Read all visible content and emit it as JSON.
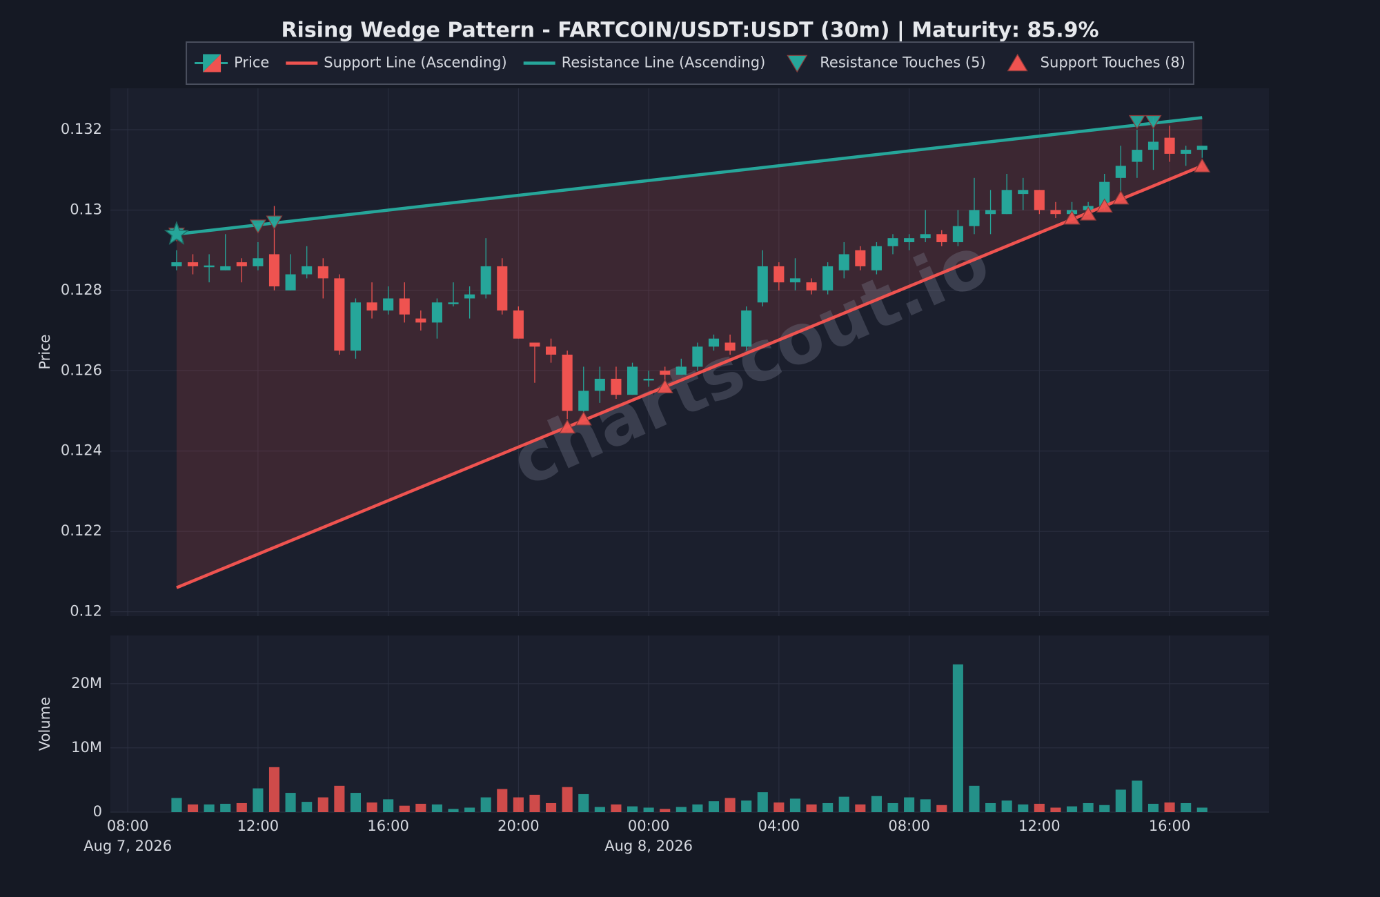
{
  "chart_data": [
    {
      "type": "candlestick",
      "title": "Rising Wedge Pattern - FARTCOIN/USDT:USDT (30m) | Maturity: 85.9%",
      "ylabel": "Price",
      "name": "Price",
      "up_color": "#26a69a",
      "down_color": "#ef5350",
      "watermark": "chartscout.io",
      "grid": true,
      "legend": "upper center",
      "x": [
        "2026-08-07T09:30",
        "2026-08-07T10:00",
        "2026-08-07T10:30",
        "2026-08-07T11:00",
        "2026-08-07T11:30",
        "2026-08-07T12:00",
        "2026-08-07T12:30",
        "2026-08-07T13:00",
        "2026-08-07T13:30",
        "2026-08-07T14:00",
        "2026-08-07T14:30",
        "2026-08-07T15:00",
        "2026-08-07T15:30",
        "2026-08-07T16:00",
        "2026-08-07T16:30",
        "2026-08-07T17:00",
        "2026-08-07T17:30",
        "2026-08-07T18:00",
        "2026-08-07T18:30",
        "2026-08-07T19:00",
        "2026-08-07T19:30",
        "2026-08-07T20:00",
        "2026-08-07T20:30",
        "2026-08-07T21:00",
        "2026-08-07T21:30",
        "2026-08-07T22:00",
        "2026-08-07T22:30",
        "2026-08-07T23:00",
        "2026-08-07T23:30",
        "2026-08-08T00:00",
        "2026-08-08T00:30",
        "2026-08-08T01:00",
        "2026-08-08T01:30",
        "2026-08-08T02:00",
        "2026-08-08T02:30",
        "2026-08-08T03:00",
        "2026-08-08T03:30",
        "2026-08-08T04:00",
        "2026-08-08T04:30",
        "2026-08-08T05:00",
        "2026-08-08T05:30",
        "2026-08-08T06:00",
        "2026-08-08T06:30",
        "2026-08-08T07:00",
        "2026-08-08T07:30",
        "2026-08-08T08:00",
        "2026-08-08T08:30",
        "2026-08-08T09:00",
        "2026-08-08T09:30",
        "2026-08-08T10:00",
        "2026-08-08T10:30",
        "2026-08-08T11:00",
        "2026-08-08T11:30",
        "2026-08-08T12:00",
        "2026-08-08T12:30",
        "2026-08-08T13:00",
        "2026-08-08T13:30",
        "2026-08-08T14:00",
        "2026-08-08T14:30",
        "2026-08-08T15:00",
        "2026-08-08T15:30",
        "2026-08-08T16:00",
        "2026-08-08T16:30",
        "2026-08-08T17:00"
      ],
      "open": [
        0.1286,
        0.1287,
        0.1286,
        0.1285,
        0.1287,
        0.1286,
        0.1289,
        0.128,
        0.1284,
        0.1286,
        0.1283,
        0.1265,
        0.1277,
        0.1275,
        0.1278,
        0.1273,
        0.1272,
        0.1277,
        0.1278,
        0.1279,
        0.1286,
        0.1275,
        0.1267,
        0.1266,
        0.1264,
        0.125,
        0.1255,
        0.1258,
        0.1254,
        0.1258,
        0.126,
        0.1259,
        0.1261,
        0.1266,
        0.1267,
        0.1266,
        0.1277,
        0.1286,
        0.1282,
        0.1282,
        0.128,
        0.1285,
        0.129,
        0.1285,
        0.1291,
        0.1292,
        0.1293,
        0.1294,
        0.1292,
        0.1296,
        0.1299,
        0.1299,
        0.1304,
        0.1305,
        0.13,
        0.1299,
        0.13,
        0.1301,
        0.1308,
        0.1312,
        0.1315,
        0.1318,
        0.1314,
        0.1315
      ],
      "high": [
        0.129,
        0.1289,
        0.1289,
        0.1294,
        0.1288,
        0.1292,
        0.1301,
        0.1289,
        0.1291,
        0.1288,
        0.1284,
        0.1278,
        0.1282,
        0.1281,
        0.1282,
        0.1275,
        0.1278,
        0.1282,
        0.1281,
        0.1293,
        0.1288,
        0.1276,
        0.1267,
        0.1268,
        0.1265,
        0.1261,
        0.1261,
        0.1261,
        0.1262,
        0.126,
        0.1261,
        0.1263,
        0.1267,
        0.1269,
        0.1269,
        0.1276,
        0.129,
        0.1287,
        0.1288,
        0.1283,
        0.1287,
        0.1292,
        0.1291,
        0.1292,
        0.1294,
        0.1294,
        0.13,
        0.1295,
        0.13,
        0.1308,
        0.1305,
        0.1309,
        0.1308,
        0.1305,
        0.1302,
        0.1302,
        0.1302,
        0.1309,
        0.1316,
        0.132,
        0.1323,
        0.1321,
        0.1316,
        0.1316
      ],
      "low": [
        0.1285,
        0.1284,
        0.1282,
        0.1285,
        0.1282,
        0.1285,
        0.128,
        0.128,
        0.1283,
        0.1278,
        0.1264,
        0.1263,
        0.1273,
        0.1274,
        0.1272,
        0.127,
        0.1268,
        0.1276,
        0.1273,
        0.1278,
        0.1274,
        0.1268,
        0.1257,
        0.1262,
        0.1248,
        0.1249,
        0.1252,
        0.1253,
        0.1254,
        0.1256,
        0.1256,
        0.1259,
        0.126,
        0.1265,
        0.1264,
        0.1265,
        0.1276,
        0.128,
        0.128,
        0.1279,
        0.1279,
        0.1283,
        0.1285,
        0.1284,
        0.1289,
        0.129,
        0.1292,
        0.1291,
        0.1291,
        0.1294,
        0.1294,
        0.1299,
        0.13,
        0.1299,
        0.1298,
        0.1298,
        0.1299,
        0.13,
        0.1304,
        0.1308,
        0.131,
        0.1312,
        0.1311,
        0.1313
      ],
      "close": [
        0.1287,
        0.1286,
        0.12862,
        0.1286,
        0.1286,
        0.1288,
        0.1281,
        0.1284,
        0.1286,
        0.1283,
        0.1265,
        0.1277,
        0.1275,
        0.1278,
        0.1274,
        0.1272,
        0.1277,
        0.1277,
        0.1279,
        0.1286,
        0.1275,
        0.1268,
        0.1266,
        0.1264,
        0.125,
        0.1255,
        0.1258,
        0.1254,
        0.1261,
        0.1258,
        0.1259,
        0.1261,
        0.1266,
        0.1268,
        0.1265,
        0.1275,
        0.1286,
        0.1282,
        0.1283,
        0.128,
        0.1286,
        0.1289,
        0.1286,
        0.1291,
        0.1293,
        0.1293,
        0.1294,
        0.1292,
        0.1296,
        0.13,
        0.13,
        0.1305,
        0.1305,
        0.13,
        0.1299,
        0.13,
        0.1301,
        0.1307,
        0.1311,
        0.1315,
        0.1317,
        0.1314,
        0.1315,
        0.1316
      ],
      "lines": [
        {
          "name": "Support Line (Ascending)",
          "color": "#ef5350",
          "x": [
            "2026-08-07T09:30",
            "2026-08-08T17:00"
          ],
          "y": [
            0.1206,
            0.1311
          ]
        },
        {
          "name": "Resistance Line (Ascending)",
          "color": "#26a69a",
          "x": [
            "2026-08-07T09:30",
            "2026-08-08T17:00"
          ],
          "y": [
            0.1294,
            0.1323
          ]
        }
      ],
      "fill_color": "rgba(239,83,80,0.16)",
      "touches": [
        {
          "name": "Resistance Touches (5)",
          "color": "#26a69a",
          "marker": "triangle-down",
          "x": [
            "2026-08-07T09:30",
            "2026-08-07T12:00",
            "2026-08-07T12:30",
            "2026-08-08T15:00",
            "2026-08-08T15:30"
          ],
          "y": [
            0.1294,
            0.1296,
            0.1297,
            0.1322,
            0.1322
          ]
        },
        {
          "name": "Support Touches (8)",
          "color": "#ef5350",
          "marker": "triangle-up",
          "x": [
            "2026-08-07T21:30",
            "2026-08-07T22:00",
            "2026-08-08T00:30",
            "2026-08-08T13:00",
            "2026-08-08T13:30",
            "2026-08-08T14:00",
            "2026-08-08T14:30",
            "2026-08-08T17:00"
          ],
          "y": [
            0.1246,
            0.1248,
            0.1256,
            0.1298,
            0.1299,
            0.1301,
            0.1303,
            0.1311
          ]
        }
      ],
      "pattern_start": {
        "x": "2026-08-07T09:30",
        "y": 0.1294,
        "color": "#26a69a"
      },
      "xlim": [
        "2026-08-07T07:28",
        "2026-08-08T19:03"
      ],
      "ylim": [
        0.11989,
        0.13303
      ],
      "yticks": [
        0.12,
        0.122,
        0.124,
        0.126,
        0.128,
        0.13,
        0.132
      ]
    },
    {
      "type": "bar",
      "ylabel": "Volume",
      "up_color": "#26a69a",
      "down_color": "#ef5350",
      "grid": true,
      "x": [
        "2026-08-07T09:30",
        "2026-08-07T10:00",
        "2026-08-07T10:30",
        "2026-08-07T11:00",
        "2026-08-07T11:30",
        "2026-08-07T12:00",
        "2026-08-07T12:30",
        "2026-08-07T13:00",
        "2026-08-07T13:30",
        "2026-08-07T14:00",
        "2026-08-07T14:30",
        "2026-08-07T15:00",
        "2026-08-07T15:30",
        "2026-08-07T16:00",
        "2026-08-07T16:30",
        "2026-08-07T17:00",
        "2026-08-07T17:30",
        "2026-08-07T18:00",
        "2026-08-07T18:30",
        "2026-08-07T19:00",
        "2026-08-07T19:30",
        "2026-08-07T20:00",
        "2026-08-07T20:30",
        "2026-08-07T21:00",
        "2026-08-07T21:30",
        "2026-08-07T22:00",
        "2026-08-07T22:30",
        "2026-08-07T23:00",
        "2026-08-07T23:30",
        "2026-08-08T00:00",
        "2026-08-08T00:30",
        "2026-08-08T01:00",
        "2026-08-08T01:30",
        "2026-08-08T02:00",
        "2026-08-08T02:30",
        "2026-08-08T03:00",
        "2026-08-08T03:30",
        "2026-08-08T04:00",
        "2026-08-08T04:30",
        "2026-08-08T05:00",
        "2026-08-08T05:30",
        "2026-08-08T06:00",
        "2026-08-08T06:30",
        "2026-08-08T07:00",
        "2026-08-08T07:30",
        "2026-08-08T08:00",
        "2026-08-08T08:30",
        "2026-08-08T09:00",
        "2026-08-08T09:30",
        "2026-08-08T10:00",
        "2026-08-08T10:30",
        "2026-08-08T11:00",
        "2026-08-08T11:30",
        "2026-08-08T12:00",
        "2026-08-08T12:30",
        "2026-08-08T13:00",
        "2026-08-08T13:30",
        "2026-08-08T14:00",
        "2026-08-08T14:30",
        "2026-08-08T15:00",
        "2026-08-08T15:30",
        "2026-08-08T16:00",
        "2026-08-08T16:30",
        "2026-08-08T17:00"
      ],
      "values": [
        2200000,
        1200000,
        1200000,
        1300000,
        1400000,
        3700000,
        7000000,
        3000000,
        1600000,
        2300000,
        4100000,
        3000000,
        1500000,
        2000000,
        1000000,
        1300000,
        1200000,
        500000,
        700000,
        2300000,
        3600000,
        2300000,
        2700000,
        1400000,
        3900000,
        2800000,
        800000,
        1200000,
        900000,
        700000,
        500000,
        800000,
        1200000,
        1700000,
        2200000,
        1800000,
        3100000,
        1500000,
        2100000,
        1200000,
        1400000,
        2400000,
        1200000,
        2500000,
        1400000,
        2300000,
        2000000,
        1100000,
        23000000,
        4100000,
        1400000,
        1800000,
        1200000,
        1300000,
        700000,
        900000,
        1400000,
        1100000,
        3500000,
        4900000,
        1300000,
        1500000,
        1400000,
        700000
      ],
      "xlim": [
        "2026-08-07T07:28",
        "2026-08-08T19:03"
      ],
      "ylim": [
        0,
        27500000
      ],
      "yticks": [
        0,
        {
          "value": 10000000,
          "label": "10M"
        },
        {
          "value": 20000000,
          "label": "20M"
        }
      ],
      "xticks": [
        {
          "value": "2026-08-07T08:00",
          "label": "08:00"
        },
        {
          "value": "2026-08-07T12:00",
          "label": "12:00"
        },
        {
          "value": "2026-08-07T16:00",
          "label": "16:00"
        },
        {
          "value": "2026-08-07T20:00",
          "label": "20:00"
        },
        {
          "value": "2026-08-08T00:00",
          "label": "00:00"
        },
        {
          "value": "2026-08-08T04:00",
          "label": "04:00"
        },
        {
          "value": "2026-08-08T08:00",
          "label": "08:00"
        },
        {
          "value": "2026-08-08T12:00",
          "label": "12:00"
        },
        {
          "value": "2026-08-08T16:00",
          "label": "16:00"
        }
      ],
      "xtick_dates": [
        {
          "value": "2026-08-07T08:00",
          "label": "Aug 7, 2026"
        },
        {
          "value": "2026-08-08T00:00",
          "label": "Aug 8, 2026"
        }
      ]
    }
  ]
}
